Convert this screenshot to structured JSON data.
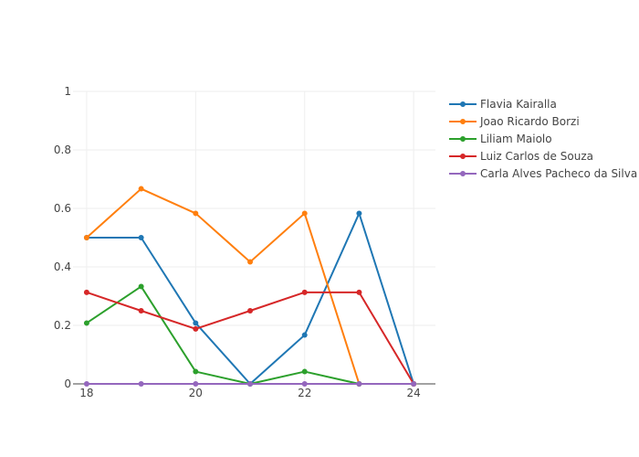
{
  "chart_data": {
    "type": "line",
    "title": "",
    "xlabel": "",
    "ylabel": "",
    "x": [
      18,
      19,
      20,
      21,
      22,
      23,
      24
    ],
    "xlim": [
      17.75,
      24.4
    ],
    "ylim": [
      0,
      1
    ],
    "x_ticks": [
      "18",
      "20",
      "22",
      "24"
    ],
    "y_ticks": [
      "0",
      "0.2",
      "0.4",
      "0.6",
      "0.8",
      "1"
    ],
    "grid": true,
    "legend_position": "right",
    "series": [
      {
        "name": "Flavia Kairalla",
        "color": "#1f77b4",
        "values": [
          0.5,
          0.5,
          0.208,
          0,
          0.167,
          0.583,
          0
        ]
      },
      {
        "name": "Joao Ricardo Borzi",
        "color": "#ff7f0e",
        "values": [
          0.5,
          0.667,
          0.583,
          0.417,
          0.583,
          0,
          0
        ]
      },
      {
        "name": "Liliam Maiolo",
        "color": "#2ca02c",
        "values": [
          0.208,
          0.333,
          0.042,
          0,
          0.042,
          0,
          0
        ]
      },
      {
        "name": "Luiz Carlos de Souza",
        "color": "#d62728",
        "values": [
          0.313,
          0.25,
          0.188,
          0.25,
          0.313,
          0.313,
          0
        ]
      },
      {
        "name": "Carla Alves Pacheco da Silva",
        "color": "#9467bd",
        "values": [
          0,
          0,
          0,
          0,
          0,
          0,
          0
        ]
      }
    ]
  }
}
